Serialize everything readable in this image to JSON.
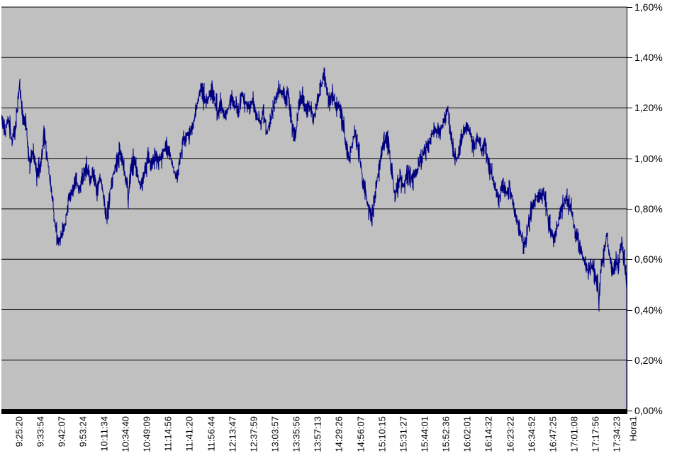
{
  "chart_data": {
    "type": "line",
    "title": "",
    "x_axis_title": "Hora1",
    "series": [
      {
        "name": "Hora1",
        "anchors": [
          [
            0,
            1.17
          ],
          [
            0.006,
            1.1
          ],
          [
            0.011,
            1.16
          ],
          [
            0.017,
            1.06
          ],
          [
            0.023,
            1.14
          ],
          [
            0.029,
            1.3
          ],
          [
            0.034,
            1.17
          ],
          [
            0.04,
            1.12
          ],
          [
            0.045,
            0.98
          ],
          [
            0.051,
            1.04
          ],
          [
            0.057,
            0.93
          ],
          [
            0.062,
            0.97
          ],
          [
            0.069,
            1.09
          ],
          [
            0.076,
            0.95
          ],
          [
            0.082,
            0.83
          ],
          [
            0.086,
            0.73
          ],
          [
            0.091,
            0.665
          ],
          [
            0.096,
            0.7
          ],
          [
            0.102,
            0.74
          ],
          [
            0.107,
            0.83
          ],
          [
            0.113,
            0.87
          ],
          [
            0.119,
            0.91
          ],
          [
            0.125,
            0.88
          ],
          [
            0.13,
            0.93
          ],
          [
            0.136,
            0.96
          ],
          [
            0.142,
            0.91
          ],
          [
            0.147,
            0.95
          ],
          [
            0.153,
            0.88
          ],
          [
            0.159,
            0.92
          ],
          [
            0.164,
            0.84
          ],
          [
            0.169,
            0.745
          ],
          [
            0.173,
            0.86
          ],
          [
            0.179,
            0.94
          ],
          [
            0.185,
            0.99
          ],
          [
            0.19,
            1.03
          ],
          [
            0.196,
            0.96
          ],
          [
            0.201,
            0.9
          ],
          [
            0.203,
            0.82
          ],
          [
            0.206,
            0.95
          ],
          [
            0.212,
            1.0
          ],
          [
            0.218,
            0.93
          ],
          [
            0.223,
            0.88
          ],
          [
            0.229,
            0.95
          ],
          [
            0.235,
            1.0
          ],
          [
            0.24,
            0.97
          ],
          [
            0.246,
            1.01
          ],
          [
            0.252,
            0.99
          ],
          [
            0.257,
            1.02
          ],
          [
            0.263,
            1.05
          ],
          [
            0.269,
            1.02
          ],
          [
            0.274,
            0.97
          ],
          [
            0.28,
            0.92
          ],
          [
            0.286,
            1.0
          ],
          [
            0.291,
            1.07
          ],
          [
            0.297,
            1.09
          ],
          [
            0.303,
            1.11
          ],
          [
            0.308,
            1.15
          ],
          [
            0.314,
            1.22
          ],
          [
            0.319,
            1.29
          ],
          [
            0.323,
            1.25
          ],
          [
            0.329,
            1.22
          ],
          [
            0.334,
            1.27
          ],
          [
            0.34,
            1.24
          ],
          [
            0.346,
            1.18
          ],
          [
            0.351,
            1.22
          ],
          [
            0.357,
            1.17
          ],
          [
            0.363,
            1.2
          ],
          [
            0.368,
            1.24
          ],
          [
            0.374,
            1.21
          ],
          [
            0.38,
            1.18
          ],
          [
            0.385,
            1.26
          ],
          [
            0.391,
            1.22
          ],
          [
            0.397,
            1.19
          ],
          [
            0.402,
            1.23
          ],
          [
            0.408,
            1.17
          ],
          [
            0.414,
            1.14
          ],
          [
            0.419,
            1.18
          ],
          [
            0.425,
            1.1
          ],
          [
            0.431,
            1.17
          ],
          [
            0.437,
            1.22
          ],
          [
            0.442,
            1.26
          ],
          [
            0.448,
            1.27
          ],
          [
            0.454,
            1.23
          ],
          [
            0.459,
            1.26
          ],
          [
            0.465,
            1.12
          ],
          [
            0.471,
            1.1
          ],
          [
            0.476,
            1.21
          ],
          [
            0.482,
            1.24
          ],
          [
            0.488,
            1.19
          ],
          [
            0.493,
            1.21
          ],
          [
            0.499,
            1.16
          ],
          [
            0.505,
            1.21
          ],
          [
            0.51,
            1.27
          ],
          [
            0.516,
            1.34
          ],
          [
            0.52,
            1.28
          ],
          [
            0.525,
            1.22
          ],
          [
            0.529,
            1.26
          ],
          [
            0.535,
            1.21
          ],
          [
            0.541,
            1.2
          ],
          [
            0.547,
            1.13
          ],
          [
            0.552,
            1.04
          ],
          [
            0.557,
            0.99
          ],
          [
            0.561,
            1.06
          ],
          [
            0.566,
            1.1
          ],
          [
            0.57,
            1.05
          ],
          [
            0.575,
            0.97
          ],
          [
            0.579,
            0.89
          ],
          [
            0.584,
            0.84
          ],
          [
            0.588,
            0.8
          ],
          [
            0.593,
            0.77
          ],
          [
            0.598,
            0.86
          ],
          [
            0.602,
            0.93
          ],
          [
            0.607,
            1.0
          ],
          [
            0.611,
            1.06
          ],
          [
            0.616,
            1.08
          ],
          [
            0.62,
            1.03
          ],
          [
            0.625,
            0.93
          ],
          [
            0.629,
            0.86
          ],
          [
            0.634,
            0.89
          ],
          [
            0.638,
            0.93
          ],
          [
            0.643,
            0.89
          ],
          [
            0.647,
            0.92
          ],
          [
            0.652,
            0.95
          ],
          [
            0.657,
            0.91
          ],
          [
            0.661,
            0.94
          ],
          [
            0.666,
            0.96
          ],
          [
            0.671,
            1.0
          ],
          [
            0.677,
            1.03
          ],
          [
            0.683,
            1.06
          ],
          [
            0.688,
            1.09
          ],
          [
            0.694,
            1.12
          ],
          [
            0.7,
            1.1
          ],
          [
            0.705,
            1.13
          ],
          [
            0.711,
            1.16
          ],
          [
            0.714,
            1.2
          ],
          [
            0.719,
            1.1
          ],
          [
            0.723,
            1.02
          ],
          [
            0.728,
            0.99
          ],
          [
            0.734,
            1.06
          ],
          [
            0.739,
            1.1
          ],
          [
            0.745,
            1.13
          ],
          [
            0.751,
            1.08
          ],
          [
            0.756,
            1.05
          ],
          [
            0.762,
            1.08
          ],
          [
            0.768,
            1.03
          ],
          [
            0.773,
            1.06
          ],
          [
            0.779,
            0.97
          ],
          [
            0.785,
            0.93
          ],
          [
            0.79,
            0.88
          ],
          [
            0.796,
            0.84
          ],
          [
            0.802,
            0.9
          ],
          [
            0.807,
            0.86
          ],
          [
            0.813,
            0.89
          ],
          [
            0.819,
            0.82
          ],
          [
            0.824,
            0.76
          ],
          [
            0.83,
            0.7
          ],
          [
            0.836,
            0.655
          ],
          [
            0.84,
            0.7
          ],
          [
            0.845,
            0.76
          ],
          [
            0.85,
            0.81
          ],
          [
            0.856,
            0.85
          ],
          [
            0.862,
            0.84
          ],
          [
            0.867,
            0.86
          ],
          [
            0.872,
            0.8
          ],
          [
            0.876,
            0.74
          ],
          [
            0.881,
            0.7
          ],
          [
            0.885,
            0.68
          ],
          [
            0.89,
            0.74
          ],
          [
            0.895,
            0.79
          ],
          [
            0.899,
            0.82
          ],
          [
            0.904,
            0.84
          ],
          [
            0.908,
            0.82
          ],
          [
            0.913,
            0.78
          ],
          [
            0.917,
            0.72
          ],
          [
            0.922,
            0.68
          ],
          [
            0.926,
            0.64
          ],
          [
            0.931,
            0.6
          ],
          [
            0.935,
            0.57
          ],
          [
            0.94,
            0.55
          ],
          [
            0.944,
            0.58
          ],
          [
            0.949,
            0.54
          ],
          [
            0.954,
            0.5
          ],
          [
            0.956,
            0.41
          ],
          [
            0.958,
            0.55
          ],
          [
            0.961,
            0.6
          ],
          [
            0.965,
            0.64
          ],
          [
            0.968,
            0.7
          ],
          [
            0.972,
            0.62
          ],
          [
            0.975,
            0.58
          ],
          [
            0.978,
            0.55
          ],
          [
            0.982,
            0.6
          ],
          [
            0.985,
            0.57
          ],
          [
            0.989,
            0.62
          ],
          [
            0.992,
            0.66
          ],
          [
            0.996,
            0.6
          ],
          [
            0.998,
            0.55
          ],
          [
            1,
            0.52
          ]
        ],
        "end_drop_to_zero": true
      }
    ],
    "x_tick_labels": [
      "9:25:20",
      "9:33:54",
      "9:42:07",
      "9:53:24",
      "10:11:34",
      "10:34:40",
      "10:49:09",
      "11:14:56",
      "11:41:20",
      "11:56:44",
      "12:13:47",
      "12:37:59",
      "13:03:57",
      "13:35:56",
      "13:57:13",
      "14:29:26",
      "14:56:07",
      "15:10:15",
      "15:31:27",
      "15:44:01",
      "15:52:36",
      "16:02:01",
      "16:14:32",
      "16:23:22",
      "16:34:52",
      "16:47:25",
      "17:01:08",
      "17:17:56",
      "17:34:23"
    ],
    "y_tick_labels": [
      "0,00%",
      "0,20%",
      "0,40%",
      "0,60%",
      "0,80%",
      "1,00%",
      "1,20%",
      "1,40%",
      "1,60%"
    ],
    "y_min": 0,
    "y_max": 1.6,
    "y_step": 0.2,
    "grid": true,
    "legend": "none",
    "noise_amp": 0.042,
    "seed": 1337,
    "colors": {
      "line": "#000080",
      "plot_bg": "#C0C0C0",
      "grid": "#000000",
      "axis": "#000000",
      "plot_border": "#808080",
      "page_bg": "#FFFFFF",
      "text": "#000000"
    }
  }
}
